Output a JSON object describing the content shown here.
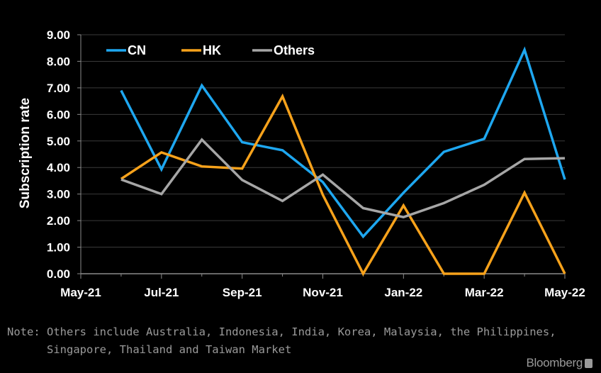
{
  "chart_data": {
    "type": "line",
    "title": "",
    "xlabel": "",
    "ylabel": "Subscription rate",
    "ylim": [
      0,
      9
    ],
    "y_ticks": [
      "0.00",
      "1.00",
      "2.00",
      "3.00",
      "4.00",
      "5.00",
      "6.00",
      "7.00",
      "8.00",
      "9.00"
    ],
    "x_tick_labels": [
      "May-21",
      "Jul-21",
      "Sep-21",
      "Nov-21",
      "Jan-22",
      "Mar-22",
      "May-22"
    ],
    "x": [
      "Jun-21",
      "Jul-21",
      "Aug-21",
      "Sep-21",
      "Oct-21",
      "Nov-21",
      "Dec-21",
      "Jan-22",
      "Feb-22",
      "Mar-22",
      "Apr-22",
      "May-22"
    ],
    "grid": true,
    "legend_position": "top-left",
    "series": [
      {
        "name": "CN",
        "color": "#1ea7f0",
        "values": [
          6.9,
          3.93,
          7.09,
          4.95,
          4.65,
          3.45,
          1.4,
          3.05,
          4.59,
          5.08,
          8.43,
          3.55
        ]
      },
      {
        "name": "HK",
        "color": "#f7a21b",
        "values": [
          3.57,
          4.57,
          4.04,
          3.96,
          6.68,
          2.97,
          0.0,
          2.57,
          0.0,
          0.0,
          3.05,
          0.0
        ]
      },
      {
        "name": "Others",
        "color": "#a6a6a6",
        "values": [
          3.55,
          3.0,
          5.05,
          3.53,
          2.74,
          3.73,
          2.47,
          2.13,
          2.66,
          3.35,
          4.32,
          4.35
        ]
      }
    ]
  },
  "note": {
    "line1": "Note: Others include Australia, Indonesia, India, Korea, Malaysia, the Philippines,",
    "line2": "Singapore, Thailand and Taiwan Market"
  },
  "source": {
    "label": "Bloomberg",
    "icon": "bloomberg-terminal-icon"
  }
}
